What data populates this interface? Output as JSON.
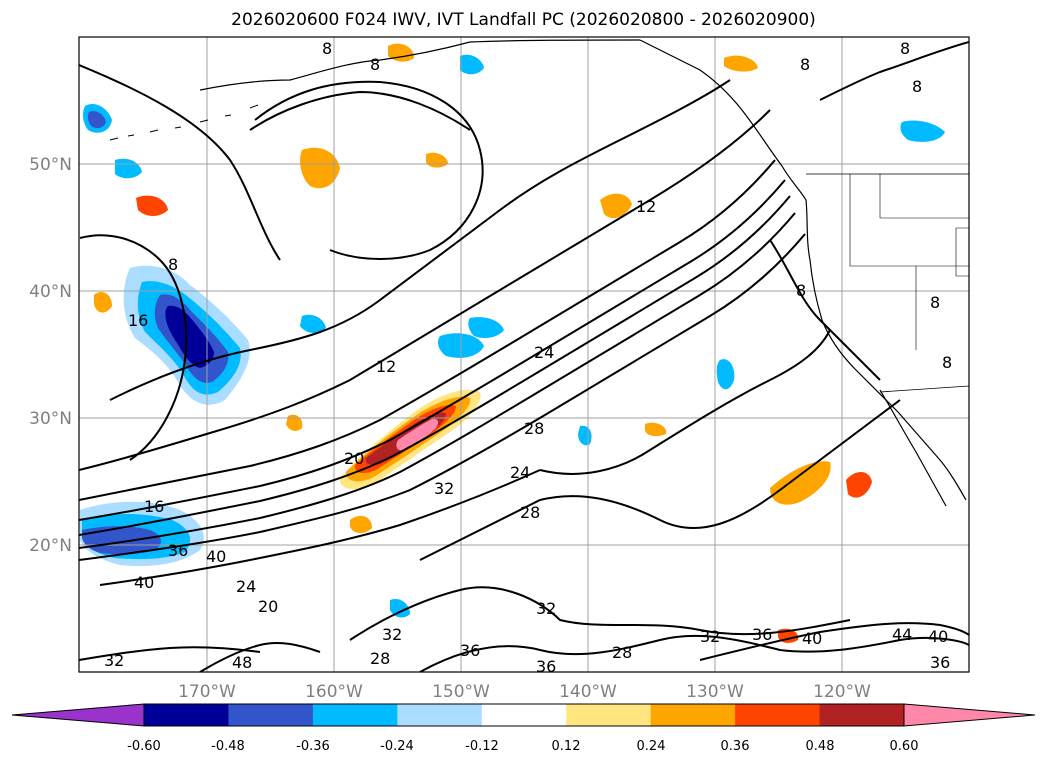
{
  "title": "2026020600 F024 IWV, IVT Landfall PC (2026020800 - 2026020900)",
  "lat_labels": [
    "50°N",
    "40°N",
    "30°N",
    "20°N"
  ],
  "lon_labels": [
    "170°W",
    "160°W",
    "150°W",
    "140°W",
    "130°W",
    "120°W"
  ],
  "contour_labels": [
    "8",
    "8",
    "8",
    "8",
    "8",
    "8",
    "8",
    "8",
    "8",
    "12",
    "12",
    "16",
    "16",
    "20",
    "20",
    "24",
    "24",
    "24",
    "28",
    "28",
    "28",
    "28",
    "32",
    "32",
    "32",
    "32",
    "32",
    "36",
    "36",
    "36",
    "36",
    "36",
    "40",
    "40",
    "40",
    "40",
    "44",
    "48"
  ],
  "colorbar": {
    "ticks": [
      "-0.60",
      "-0.48",
      "-0.36",
      "-0.24",
      "-0.12",
      "0.12",
      "0.24",
      "0.36",
      "0.48",
      "0.60"
    ],
    "colors": [
      "#9933cc",
      "#000099",
      "#3355cc",
      "#00bbff",
      "#aaddff",
      "#ffffff",
      "#ffe680",
      "#ffa500",
      "#ff4400",
      "#b22222",
      "#ff88aa"
    ],
    "extend_low_color": "#9933cc",
    "extend_high_color": "#ff88aa"
  }
}
